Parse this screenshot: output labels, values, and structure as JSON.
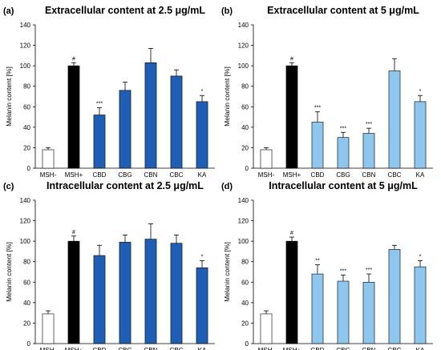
{
  "figure": {
    "colors": {
      "negative_control": "#ffffff",
      "positive_control": "#000000",
      "cannabinoid_dark": "#1f5fb3",
      "cannabinoid_light": "#8fc6ec",
      "outline": "#000000"
    }
  },
  "chart_data": [
    {
      "type": "bar",
      "panel_label": "(a)",
      "title": "Extracellular content at 2.5 μg/mL",
      "xlabel": "",
      "ylabel": "Melanin content [%]",
      "ylim": [
        0,
        140
      ],
      "yticks": [
        0,
        20,
        40,
        60,
        80,
        100,
        120,
        140
      ],
      "grid": false,
      "categories": [
        "MSH-",
        "MSH+",
        "CBD",
        "CBG",
        "CBN",
        "CBC",
        "KA"
      ],
      "values": [
        18,
        100,
        52,
        76,
        103,
        90,
        65
      ],
      "errors": [
        2,
        3,
        7,
        8,
        14,
        6,
        6
      ],
      "significance": [
        "",
        "#",
        "***",
        "",
        "",
        "",
        "*"
      ],
      "bar_colors": [
        "negative_control",
        "positive_control",
        "cannabinoid_dark",
        "cannabinoid_dark",
        "cannabinoid_dark",
        "cannabinoid_dark",
        "cannabinoid_dark"
      ]
    },
    {
      "type": "bar",
      "panel_label": "(b)",
      "title": "Extracellular content at 5 μg/mL",
      "xlabel": "",
      "ylabel": "Melanin content [%]",
      "ylim": [
        0,
        140
      ],
      "yticks": [
        0,
        20,
        40,
        60,
        80,
        100,
        120,
        140
      ],
      "grid": false,
      "categories": [
        "MSH-",
        "MSH+",
        "CBD",
        "CBG",
        "CBN",
        "CBC",
        "KA"
      ],
      "values": [
        18,
        100,
        45,
        30,
        34,
        95,
        65
      ],
      "errors": [
        2,
        3,
        10,
        5,
        5,
        12,
        6
      ],
      "significance": [
        "",
        "#",
        "***",
        "***",
        "***",
        "",
        "*"
      ],
      "bar_colors": [
        "negative_control",
        "positive_control",
        "cannabinoid_light",
        "cannabinoid_light",
        "cannabinoid_light",
        "cannabinoid_light",
        "cannabinoid_light"
      ]
    },
    {
      "type": "bar",
      "panel_label": "(c)",
      "title": "Intracellular content at 2.5 μg/mL",
      "xlabel": "",
      "ylabel": "Melanin content [%]",
      "ylim": [
        0,
        140
      ],
      "yticks": [
        0,
        20,
        40,
        60,
        80,
        100,
        120,
        140
      ],
      "grid": false,
      "categories": [
        "MSH-",
        "MSH+",
        "CBD",
        "CBG",
        "CBN",
        "CBC",
        "KA"
      ],
      "values": [
        29,
        100,
        86,
        99,
        102,
        98,
        74
      ],
      "errors": [
        3,
        5,
        10,
        7,
        15,
        8,
        7
      ],
      "significance": [
        "",
        "#",
        "",
        "",
        "",
        "",
        "*"
      ],
      "bar_colors": [
        "negative_control",
        "positive_control",
        "cannabinoid_dark",
        "cannabinoid_dark",
        "cannabinoid_dark",
        "cannabinoid_dark",
        "cannabinoid_dark"
      ]
    },
    {
      "type": "bar",
      "panel_label": "(d)",
      "title": "Intracellular content at 5 μg/mL",
      "xlabel": "",
      "ylabel": "Melanin content [%]",
      "ylim": [
        0,
        140
      ],
      "yticks": [
        0,
        20,
        40,
        60,
        80,
        100,
        120,
        140
      ],
      "grid": false,
      "categories": [
        "MSH-",
        "MSH+",
        "CBD",
        "CBG",
        "CBN",
        "CBC",
        "KA"
      ],
      "values": [
        29,
        100,
        68,
        61,
        60,
        92,
        75
      ],
      "errors": [
        3,
        4,
        9,
        6,
        8,
        4,
        6
      ],
      "significance": [
        "",
        "#",
        "**",
        "***",
        "***",
        "",
        "*"
      ],
      "bar_colors": [
        "negative_control",
        "positive_control",
        "cannabinoid_light",
        "cannabinoid_light",
        "cannabinoid_light",
        "cannabinoid_light",
        "cannabinoid_light"
      ]
    }
  ]
}
